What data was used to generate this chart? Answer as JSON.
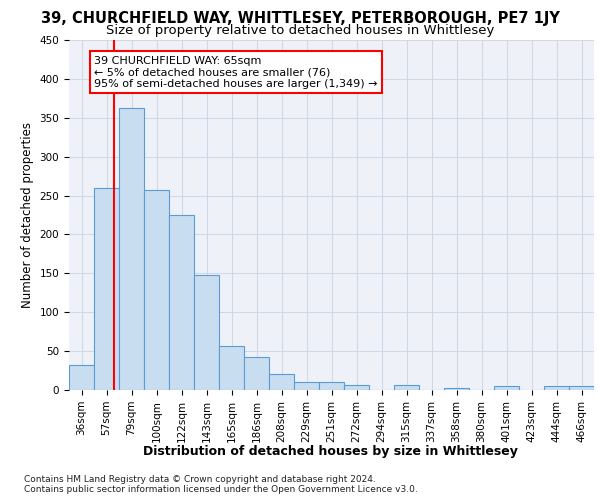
{
  "title": "39, CHURCHFIELD WAY, WHITTLESEY, PETERBOROUGH, PE7 1JY",
  "subtitle": "Size of property relative to detached houses in Whittlesey",
  "xlabel": "Distribution of detached houses by size in Whittlesey",
  "ylabel": "Number of detached properties",
  "categories": [
    "36sqm",
    "57sqm",
    "79sqm",
    "100sqm",
    "122sqm",
    "143sqm",
    "165sqm",
    "186sqm",
    "208sqm",
    "229sqm",
    "251sqm",
    "272sqm",
    "294sqm",
    "315sqm",
    "337sqm",
    "358sqm",
    "380sqm",
    "401sqm",
    "423sqm",
    "444sqm",
    "466sqm"
  ],
  "bar_heights": [
    32,
    260,
    362,
    257,
    225,
    148,
    57,
    43,
    20,
    10,
    10,
    7,
    0,
    7,
    0,
    3,
    0,
    5,
    0,
    5,
    5
  ],
  "bar_color": "#c9ddf0",
  "bar_edge_color": "#5b9bd5",
  "annotation_line1": "39 CHURCHFIELD WAY: 65sqm",
  "annotation_line2": "← 5% of detached houses are smaller (76)",
  "annotation_line3": "95% of semi-detached houses are larger (1,349) →",
  "vline_color": "red",
  "vline_x": 1.3,
  "ylim": [
    0,
    450
  ],
  "yticks": [
    0,
    50,
    100,
    150,
    200,
    250,
    300,
    350,
    400,
    450
  ],
  "grid_color": "#d0d8e8",
  "bg_color": "#eef2f8",
  "footer_line1": "Contains HM Land Registry data © Crown copyright and database right 2024.",
  "footer_line2": "Contains public sector information licensed under the Open Government Licence v3.0.",
  "title_fontsize": 10.5,
  "subtitle_fontsize": 9.5,
  "xlabel_fontsize": 9,
  "ylabel_fontsize": 8.5,
  "annotation_fontsize": 8,
  "tick_fontsize": 7.5,
  "footer_fontsize": 6.5
}
